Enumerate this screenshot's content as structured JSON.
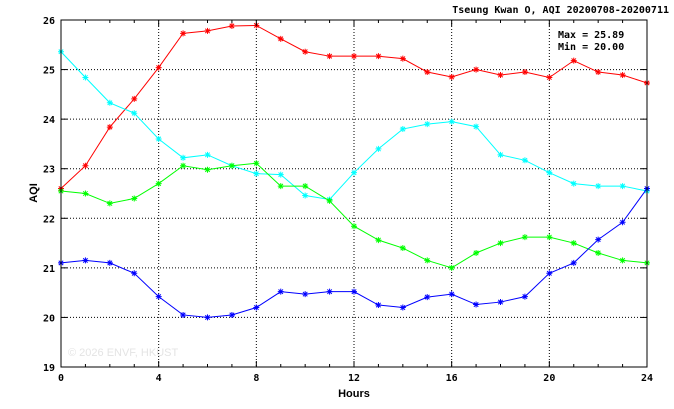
{
  "chart_data": {
    "type": "line",
    "title": "Tseung Kwan O, AQI 20200708-20200711",
    "xlabel": "Hours",
    "ylabel": "AQI",
    "xlim": [
      0,
      24
    ],
    "ylim": [
      19,
      26
    ],
    "xticks": [
      0,
      4,
      8,
      12,
      16,
      20,
      24
    ],
    "yticks": [
      19,
      20,
      21,
      22,
      23,
      24,
      25,
      26
    ],
    "grid": true,
    "max_label": "Max = 25.89",
    "min_label": "Min = 20.00",
    "watermark": "© 2026 ENVF, HKUST",
    "x": [
      0,
      1,
      2,
      3,
      4,
      5,
      6,
      7,
      8,
      9,
      10,
      11,
      12,
      13,
      14,
      15,
      16,
      17,
      18,
      19,
      20,
      21,
      22,
      23,
      24
    ],
    "series": [
      {
        "color": "#ff0000",
        "values": [
          22.6,
          23.06,
          23.84,
          24.41,
          25.04,
          25.73,
          25.78,
          25.88,
          25.89,
          25.62,
          25.36,
          25.27,
          25.27,
          25.27,
          25.22,
          24.95,
          24.85,
          25.0,
          24.89,
          24.95,
          24.84,
          25.18,
          24.95,
          24.89,
          24.73
        ]
      },
      {
        "color": "#00ffff",
        "values": [
          25.36,
          24.84,
          24.33,
          24.12,
          23.6,
          23.22,
          23.28,
          23.06,
          22.9,
          22.88,
          22.46,
          22.38,
          22.92,
          23.4,
          23.8,
          23.9,
          23.95,
          23.85,
          23.28,
          23.17,
          22.92,
          22.7,
          22.65,
          22.65,
          22.55
        ]
      },
      {
        "color": "#00ff00",
        "values": [
          22.55,
          22.5,
          22.3,
          22.4,
          22.7,
          23.06,
          22.98,
          23.06,
          23.11,
          22.65,
          22.65,
          22.35,
          21.84,
          21.56,
          21.4,
          21.15,
          21.0,
          21.3,
          21.5,
          21.62,
          21.62,
          21.5,
          21.3,
          21.15,
          21.1
        ]
      },
      {
        "color": "#0000ff",
        "values": [
          21.1,
          21.15,
          21.1,
          20.89,
          20.42,
          20.05,
          20.0,
          20.05,
          20.2,
          20.52,
          20.47,
          20.52,
          20.52,
          20.25,
          20.2,
          20.41,
          20.47,
          20.26,
          20.31,
          20.42,
          20.89,
          21.1,
          21.57,
          21.92,
          22.6
        ]
      }
    ]
  }
}
